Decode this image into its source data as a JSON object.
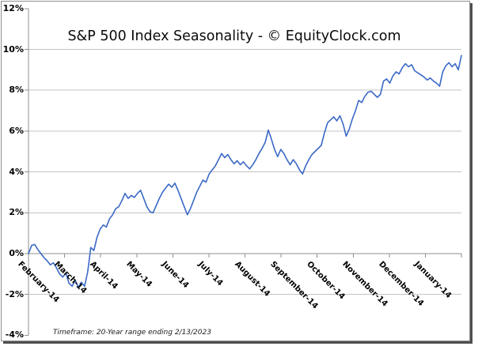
{
  "frame": {
    "background": "#ffffff",
    "border_color": "#8f8f8f",
    "shadow_color": "#4f4f4f"
  },
  "chart_data": {
    "type": "line",
    "title": "S&P 500 Index Seasonality - © EquityClock.com",
    "footer": "Timeframe: 20-Year range ending 2/13/2023",
    "xlabel": "",
    "ylabel": "",
    "legend": "none",
    "grid": "horizontal",
    "ylim": [
      -4,
      12
    ],
    "y_tick_labels": [
      "12%",
      "10%",
      "8%",
      "6%",
      "4%",
      "2%",
      "0%",
      "-2%",
      "-4%"
    ],
    "y_tick_values": [
      12,
      10,
      8,
      6,
      4,
      2,
      0,
      -2,
      -4
    ],
    "x_categories": [
      "February-14",
      "March-14",
      "April-14",
      "May-14",
      "June-14",
      "July-14",
      "August-14",
      "September-14",
      "October-14",
      "November-14",
      "December-14",
      "January-14"
    ],
    "x_axis_note": "category axis drawn at 0% with tick marks; labels rotated 45°",
    "line_color": "#3b69c6",
    "gridline_color": "#c3c3c3",
    "axis_color": "#8f8f8f",
    "label_color": "#000000",
    "values": [
      0.0,
      0.4,
      0.45,
      0.2,
      0.0,
      -0.2,
      -0.35,
      -0.55,
      -0.45,
      -0.7,
      -1.0,
      -1.15,
      -0.95,
      -1.45,
      -1.6,
      -1.3,
      -1.65,
      -1.4,
      -1.6,
      -0.9,
      0.3,
      0.15,
      0.8,
      1.2,
      1.4,
      1.3,
      1.7,
      1.9,
      2.2,
      2.3,
      2.6,
      2.95,
      2.7,
      2.85,
      2.75,
      2.95,
      3.1,
      2.7,
      2.3,
      2.05,
      2.0,
      2.35,
      2.7,
      3.0,
      3.2,
      3.4,
      3.25,
      3.45,
      3.1,
      2.7,
      2.3,
      1.9,
      2.2,
      2.6,
      3.0,
      3.3,
      3.6,
      3.5,
      3.9,
      4.1,
      4.3,
      4.6,
      4.9,
      4.7,
      4.85,
      4.6,
      4.4,
      4.55,
      4.35,
      4.5,
      4.3,
      4.15,
      4.35,
      4.6,
      4.9,
      5.15,
      5.45,
      6.05,
      5.6,
      5.1,
      4.75,
      5.1,
      4.9,
      4.6,
      4.35,
      4.6,
      4.4,
      4.1,
      3.9,
      4.3,
      4.6,
      4.85,
      5.0,
      5.15,
      5.3,
      5.9,
      6.4,
      6.55,
      6.7,
      6.5,
      6.75,
      6.35,
      5.75,
      6.1,
      6.6,
      7.0,
      7.5,
      7.4,
      7.7,
      7.9,
      7.95,
      7.8,
      7.65,
      7.8,
      8.45,
      8.55,
      8.35,
      8.7,
      8.9,
      8.8,
      9.1,
      9.3,
      9.15,
      9.25,
      8.95,
      8.85,
      8.75,
      8.65,
      8.5,
      8.6,
      8.45,
      8.35,
      8.2,
      8.9,
      9.2,
      9.35,
      9.15,
      9.3,
      9.0,
      9.7
    ]
  }
}
